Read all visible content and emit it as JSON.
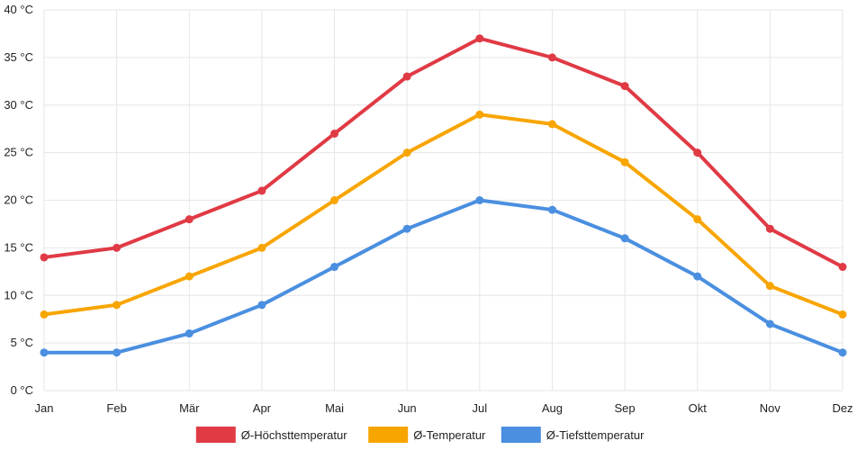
{
  "chart_data": {
    "type": "line",
    "categories": [
      "Jan",
      "Feb",
      "Mär",
      "Apr",
      "Mai",
      "Jun",
      "Jul",
      "Aug",
      "Sep",
      "Okt",
      "Nov",
      "Dez"
    ],
    "y_ticks": [
      "0 °C",
      "5 °C",
      "10 °C",
      "15 °C",
      "20 °C",
      "25 °C",
      "30 °C",
      "35 °C",
      "40 °C"
    ],
    "ylim": [
      0,
      40
    ],
    "grid": true,
    "legend_position": "bottom",
    "series": [
      {
        "name": "Ø-Höchsttemperatur",
        "color": "#e03a45",
        "values": [
          14,
          15,
          18,
          21,
          27,
          33,
          37,
          35,
          32,
          25,
          17,
          13
        ]
      },
      {
        "name": "Ø-Temperatur",
        "color": "#f8a500",
        "values": [
          8,
          9,
          12,
          15,
          20,
          25,
          29,
          28,
          24,
          18,
          11,
          8
        ]
      },
      {
        "name": "Ø-Tiefsttemperatur",
        "color": "#4a8fe0",
        "values": [
          4,
          4,
          6,
          9,
          13,
          17,
          20,
          19,
          16,
          12,
          7,
          4
        ]
      }
    ]
  }
}
